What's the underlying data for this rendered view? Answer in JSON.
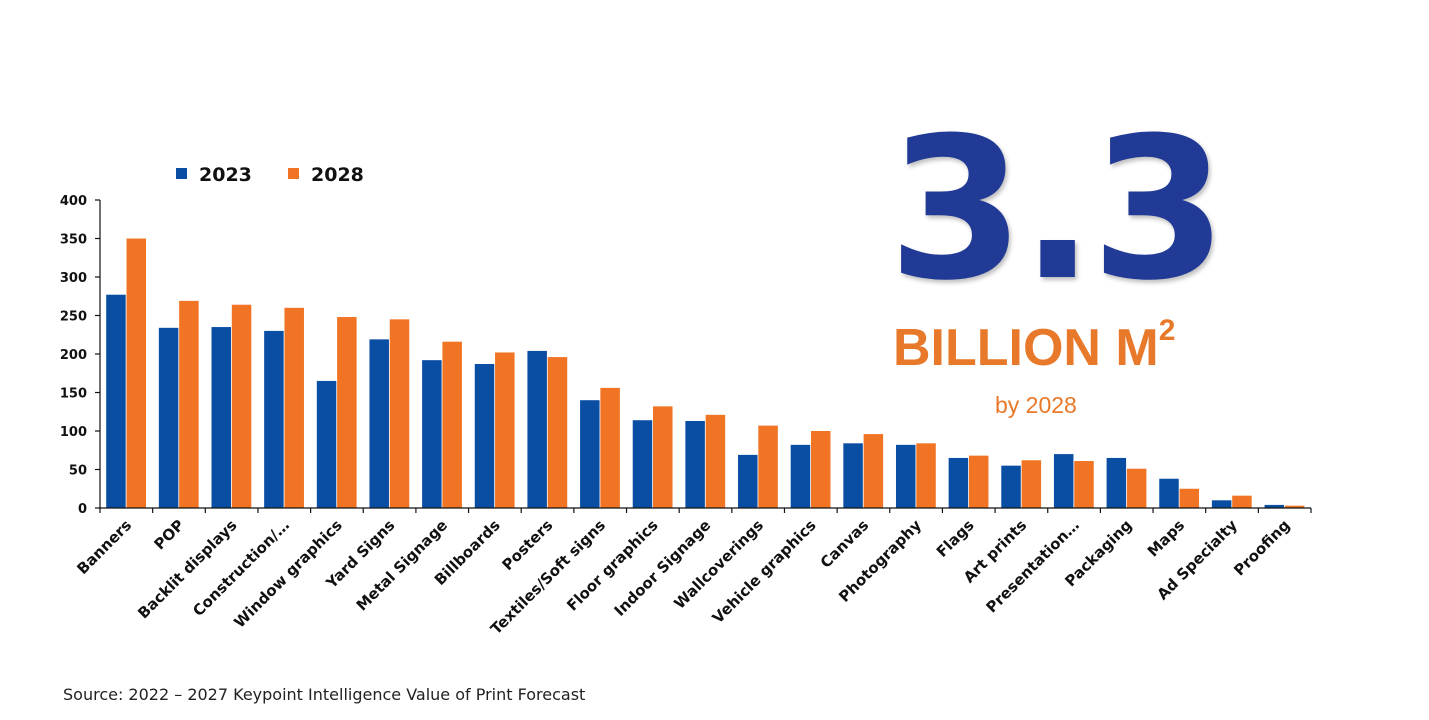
{
  "chart_data": {
    "type": "bar",
    "title": "",
    "xlabel": "",
    "ylabel": "",
    "ylim": [
      0,
      400
    ],
    "yticks": [
      0,
      50,
      100,
      150,
      200,
      250,
      300,
      350,
      400
    ],
    "grid": false,
    "legend_position": "top-left",
    "categories": [
      "Banners",
      "POP",
      "Backlit displays",
      "Construction/…",
      "Window graphics",
      "Yard Signs",
      "Metal Signage",
      "Billboards",
      "Posters",
      "Textiles/Soft signs",
      "Floor graphics",
      "Indoor Signage",
      "Wallcoverings",
      "Vehicle graphics",
      "Canvas",
      "Photography",
      "Flags",
      "Art prints",
      "Presentation…",
      "Packaging",
      "Maps",
      "Ad Specialty",
      "Proofing"
    ],
    "series": [
      {
        "name": "2023",
        "color": "#0a4ea3",
        "values": [
          277,
          234,
          235,
          230,
          165,
          219,
          192,
          187,
          204,
          140,
          114,
          113,
          69,
          82,
          84,
          82,
          65,
          55,
          70,
          65,
          38,
          10,
          4
        ]
      },
      {
        "name": "2028",
        "color": "#f07423",
        "values": [
          350,
          269,
          264,
          260,
          248,
          245,
          216,
          202,
          196,
          156,
          132,
          121,
          107,
          100,
          96,
          84,
          68,
          62,
          61,
          51,
          25,
          16,
          3
        ]
      }
    ]
  },
  "callout": {
    "number": "3.3",
    "unit": "BILLION M",
    "unit_superscript": "2",
    "subtitle": "by 2028",
    "number_color": "#213a96",
    "text_color": "#e8792a"
  },
  "source": "Source: 2022 – 2027 Keypoint Intelligence Value of Print Forecast"
}
